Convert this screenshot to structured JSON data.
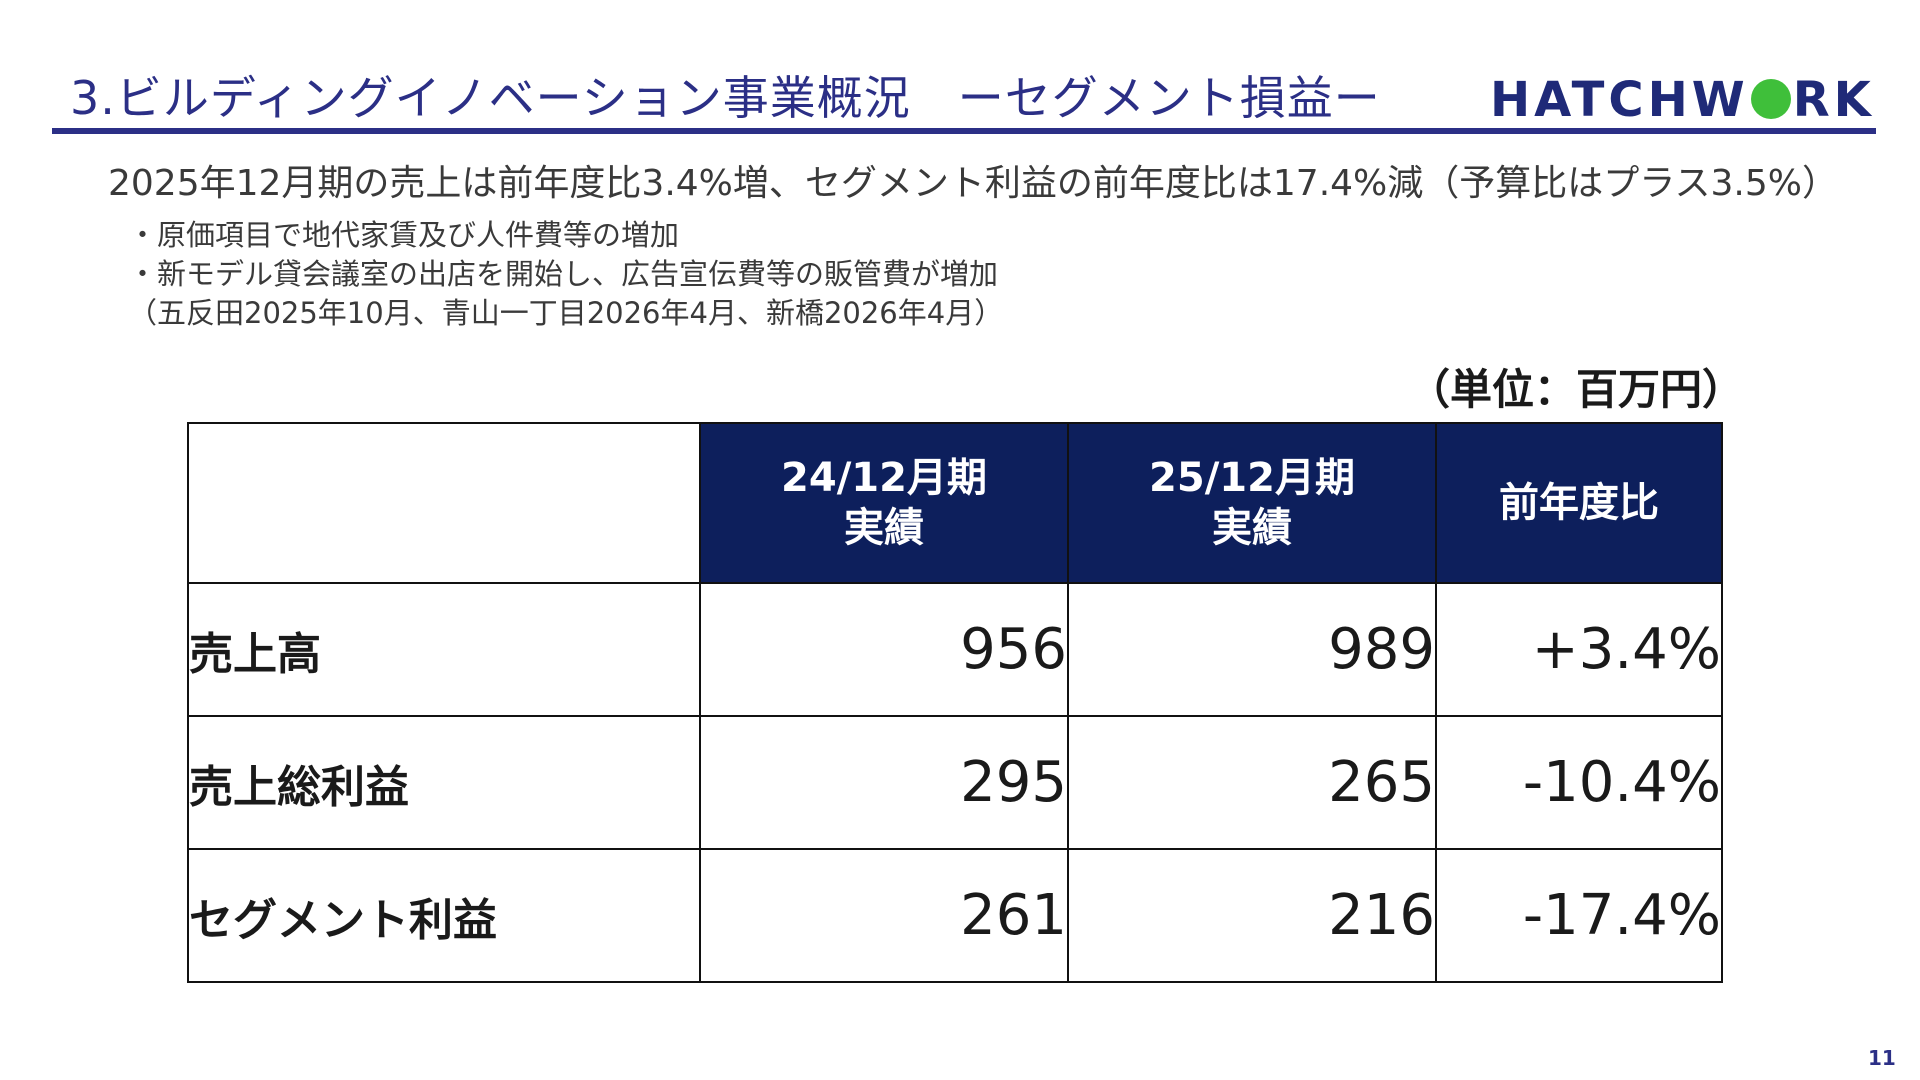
{
  "header": {
    "title": "3.ビルディングイノベーション事業概況　ーセグメント損益ー",
    "logo_text_a": "HATCHW",
    "logo_text_b": "RK"
  },
  "summary": "2025年12月期の売上は前年度比3.4%増、セグメント利益の前年度比は17.4%減（予算比はプラス3.5%）",
  "bullets": [
    "・原価項目で地代家賃及び人件費等の増加",
    "・新モデル貸会議室の出店を開始し、広告宣伝費等の販管費が増加",
    "（五反田2025年10月、青山一丁目2026年4月、新橋2026年4月）"
  ],
  "unit": "（単位：百万円）",
  "table": {
    "headers": [
      {
        "line1": "24/12月期",
        "line2": "実績"
      },
      {
        "line1": "25/12月期",
        "line2": "実績"
      },
      {
        "line1": "前年度比",
        "line2": ""
      }
    ],
    "rows": [
      {
        "label": "売上高",
        "prev": "956",
        "curr": "989",
        "yoy": "+3.4%"
      },
      {
        "label": "売上総利益",
        "prev": "295",
        "curr": "265",
        "yoy": "-10.4%"
      },
      {
        "label": "セグメント利益",
        "prev": "261",
        "curr": "216",
        "yoy": "-17.4%"
      }
    ]
  },
  "page_number": "11",
  "colors": {
    "accent": "#2b2f86",
    "header_fill": "#0d1f5c",
    "logo_dot": "#3fbf3a"
  }
}
